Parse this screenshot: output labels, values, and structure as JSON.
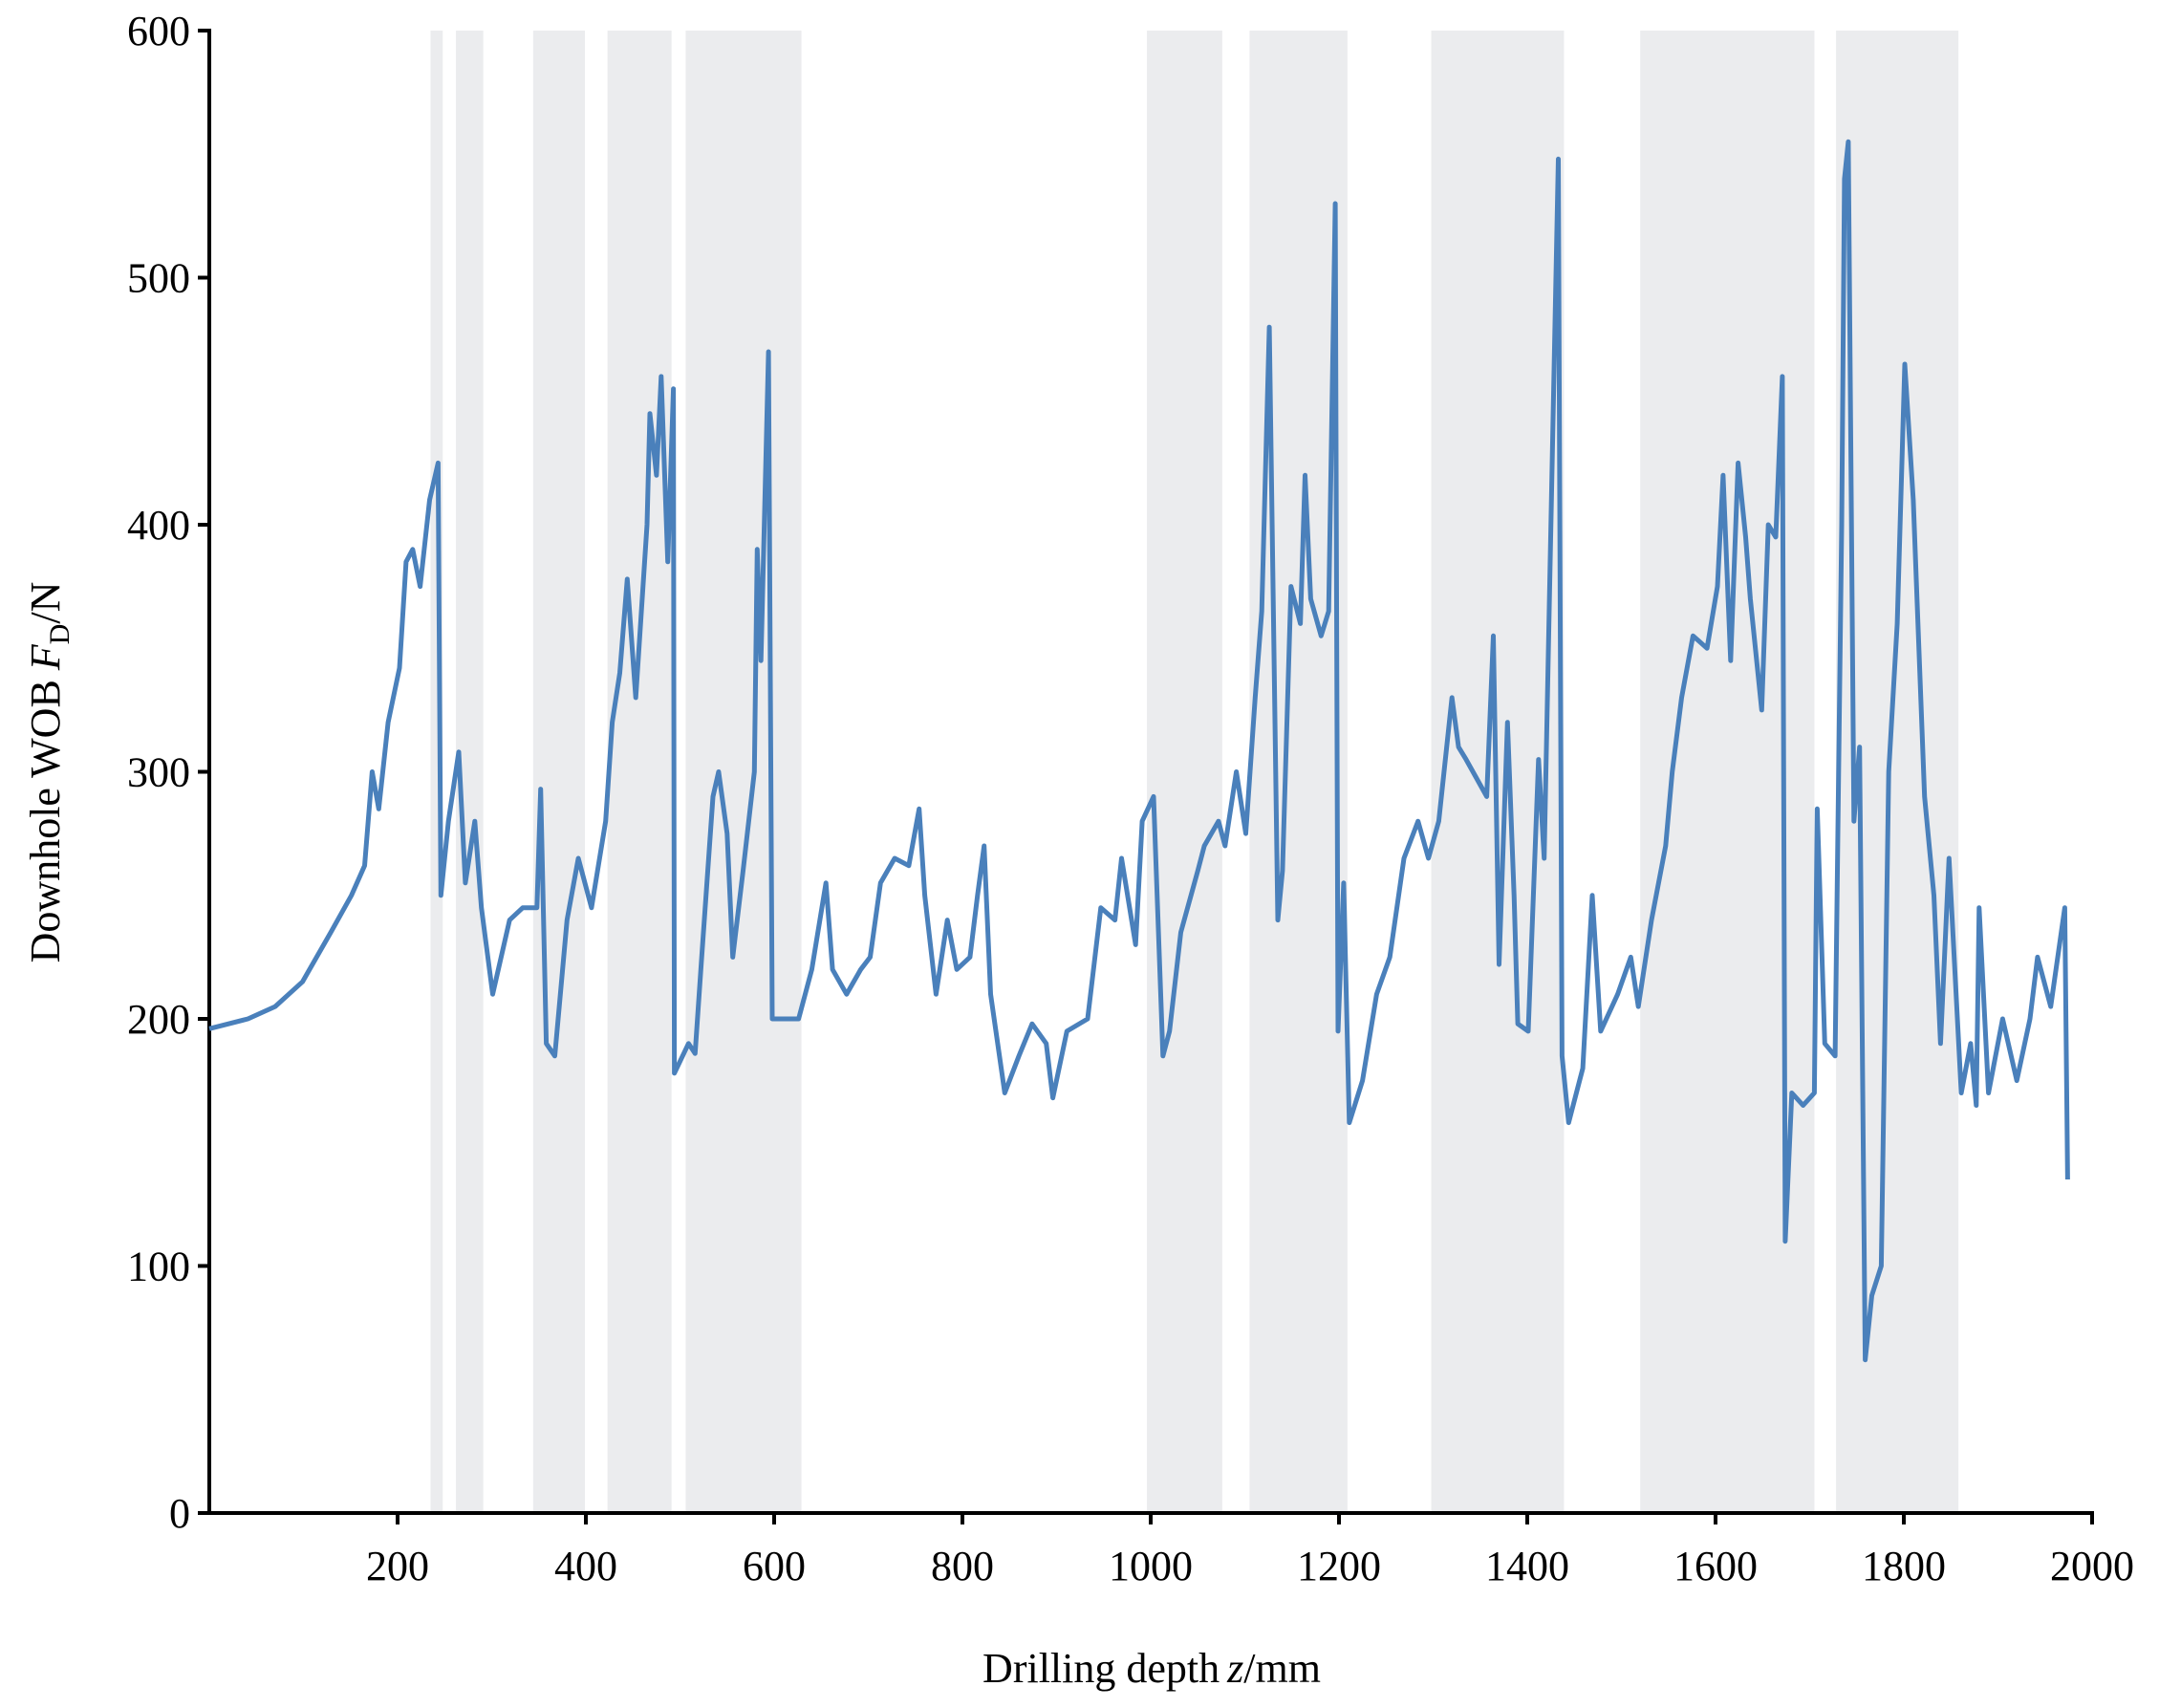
{
  "chart_data": {
    "type": "line",
    "xlabel_parts": [
      "Drilling depth",
      "z",
      "/mm"
    ],
    "ylabel_parts": [
      "Downhole WOB",
      "F",
      "D",
      "/N"
    ],
    "xlim": [
      0,
      2000
    ],
    "ylim": [
      0,
      600
    ],
    "xticks": [
      200,
      400,
      600,
      800,
      1000,
      1200,
      1400,
      1600,
      1800,
      2000
    ],
    "yticks": [
      0,
      100,
      200,
      300,
      400,
      500,
      600
    ],
    "shaded_regions": [
      [
        235,
        248
      ],
      [
        262,
        291
      ],
      [
        344,
        399
      ],
      [
        423,
        491
      ],
      [
        506,
        629
      ],
      [
        996,
        1076
      ],
      [
        1105,
        1209
      ],
      [
        1298,
        1439
      ],
      [
        1520,
        1705
      ],
      [
        1728,
        1858
      ]
    ],
    "shade_color": "#ebecee",
    "series": [
      {
        "color": "#4a80bb",
        "x": [
          0,
          41,
          70,
          99,
          129,
          151,
          165,
          173,
          180,
          190,
          202,
          209,
          216,
          224,
          234,
          243,
          246,
          254,
          265,
          272,
          282,
          289,
          301,
          319,
          333,
          348,
          352,
          358,
          367,
          380,
          392,
          406,
          421,
          428,
          436,
          444,
          453,
          465,
          468,
          475,
          480,
          487,
          493,
          494,
          509,
          516,
          523,
          535,
          541,
          550,
          556,
          567,
          579,
          582,
          586,
          594,
          598,
          611,
          626,
          640,
          655,
          662,
          677,
          692,
          702,
          713,
          728,
          743,
          754,
          760,
          772,
          784,
          794,
          808,
          816,
          823,
          830,
          845,
          860,
          874,
          889,
          896,
          911,
          933,
          947,
          962,
          969,
          984,
          991,
          1003,
          1013,
          1020,
          1032,
          1050,
          1057,
          1072,
          1079,
          1091,
          1101,
          1111,
          1118,
          1126,
          1135,
          1140,
          1149,
          1159,
          1164,
          1170,
          1181,
          1189,
          1196,
          1199,
          1205,
          1211,
          1225,
          1240,
          1254,
          1269,
          1284,
          1295,
          1306,
          1320,
          1327,
          1335,
          1357,
          1364,
          1370,
          1379,
          1386,
          1390,
          1401,
          1412,
          1418,
          1433,
          1437,
          1444,
          1459,
          1469,
          1478,
          1496,
          1510,
          1518,
          1532,
          1547,
          1554,
          1564,
          1576,
          1591,
          1602,
          1608,
          1616,
          1624,
          1632,
          1637,
          1649,
          1656,
          1664,
          1671,
          1674,
          1681,
          1693,
          1705,
          1708,
          1716,
          1727,
          1734,
          1737,
          1741,
          1747,
          1753,
          1759,
          1766,
          1776,
          1784,
          1793,
          1801,
          1810,
          1814,
          1822,
          1832,
          1839,
          1848,
          1861,
          1871,
          1877,
          1880,
          1890,
          1905,
          1920,
          1934,
          1942,
          1956,
          1971,
          1974
        ],
        "values": [
          196,
          200,
          205,
          215,
          235,
          250,
          262,
          300,
          285,
          320,
          342,
          385,
          390,
          375,
          410,
          425,
          250,
          280,
          308,
          255,
          280,
          245,
          210,
          240,
          245,
          245,
          293,
          190,
          185,
          240,
          265,
          245,
          280,
          320,
          340,
          378,
          330,
          400,
          445,
          420,
          460,
          385,
          455,
          178,
          190,
          186,
          225,
          290,
          300,
          275,
          225,
          260,
          300,
          390,
          345,
          470,
          200,
          200,
          200,
          220,
          255,
          220,
          210,
          220,
          225,
          255,
          265,
          262,
          285,
          250,
          210,
          240,
          220,
          225,
          250,
          270,
          210,
          170,
          185,
          198,
          190,
          168,
          195,
          200,
          245,
          240,
          265,
          230,
          280,
          290,
          185,
          195,
          235,
          260,
          270,
          280,
          270,
          300,
          275,
          330,
          365,
          480,
          240,
          260,
          375,
          360,
          420,
          370,
          355,
          365,
          530,
          195,
          255,
          158,
          175,
          210,
          225,
          265,
          280,
          265,
          280,
          330,
          310,
          305,
          290,
          355,
          222,
          320,
          250,
          198,
          195,
          305,
          265,
          548,
          185,
          158,
          180,
          250,
          195,
          210,
          225,
          205,
          240,
          270,
          300,
          330,
          355,
          350,
          375,
          420,
          345,
          425,
          395,
          370,
          325,
          400,
          395,
          460,
          110,
          170,
          165,
          170,
          285,
          190,
          185,
          400,
          540,
          555,
          280,
          310,
          62,
          88,
          100,
          300,
          360,
          465,
          410,
          370,
          290,
          250,
          190,
          265,
          170,
          190,
          165,
          245,
          170,
          200,
          175,
          200,
          225,
          205,
          245,
          135
        ]
      }
    ]
  }
}
